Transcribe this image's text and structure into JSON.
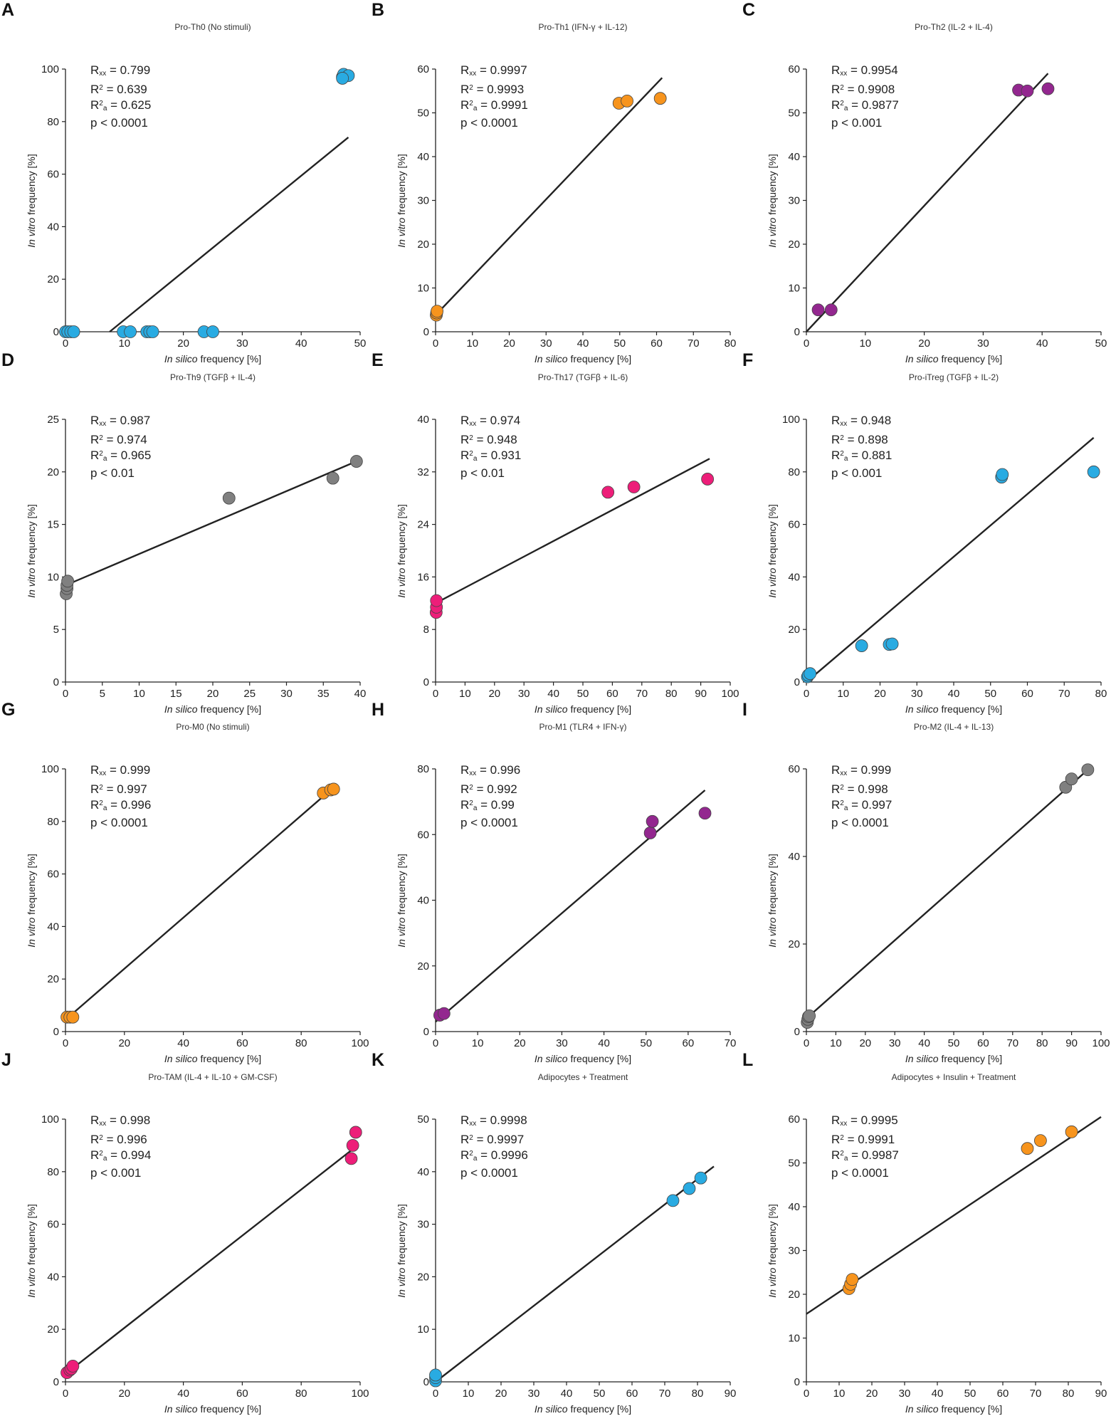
{
  "figure": {
    "x_axis_label": {
      "italic": "In silico",
      "rest": " frequency [%]"
    },
    "y_axis_label": {
      "italic": "In vitro",
      "rest": " frequency [%]"
    },
    "stat_labels": {
      "rxx_main": "R",
      "rxx_sub": "xx",
      "r2_main": "R",
      "r2_sup": "2",
      "r2a_main": "R",
      "r2a_sup": "2",
      "r2a_sub": "a"
    }
  },
  "chart_data": [
    {
      "letter": "A",
      "type": "scatter",
      "title": "Pro-Th0 (No stimuli)",
      "color": "#29abe2",
      "xlim": [
        0,
        50
      ],
      "ylim": [
        0,
        100
      ],
      "xticks": [
        0,
        10,
        20,
        30,
        40,
        50
      ],
      "yticks": [
        0,
        20,
        40,
        60,
        80,
        100
      ],
      "points": [
        [
          0,
          0
        ],
        [
          0.4,
          0
        ],
        [
          0.9,
          0
        ],
        [
          1.4,
          0
        ],
        [
          9.8,
          0
        ],
        [
          11,
          0
        ],
        [
          13.8,
          0
        ],
        [
          14.3,
          0
        ],
        [
          14.8,
          0
        ],
        [
          23.5,
          0
        ],
        [
          25,
          0
        ],
        [
          47,
          97
        ],
        [
          47.2,
          98
        ],
        [
          48,
          97.5
        ],
        [
          47,
          96.5
        ]
      ],
      "fit": [
        [
          7.5,
          0
        ],
        [
          48,
          74
        ]
      ],
      "stats": {
        "rxx": " =  0.799",
        "r2": " =  0.639",
        "r2a": " =  0.625",
        "p": "p < 0.0001"
      }
    },
    {
      "letter": "B",
      "type": "scatter",
      "title": "Pro-Th1 (IFN-γ + IL-12)",
      "color": "#f7941d",
      "xlim": [
        0,
        80
      ],
      "ylim": [
        0,
        60
      ],
      "xticks": [
        0,
        10,
        20,
        30,
        40,
        50,
        60,
        70,
        80
      ],
      "yticks": [
        0,
        10,
        20,
        30,
        40,
        50,
        60
      ],
      "points": [
        [
          0.2,
          3.8
        ],
        [
          0.3,
          4.3
        ],
        [
          0.4,
          4.7
        ],
        [
          49.8,
          52.2
        ],
        [
          52,
          52.7
        ],
        [
          61,
          53.3
        ]
      ],
      "fit": [
        [
          0,
          3.8
        ],
        [
          61.5,
          58
        ]
      ],
      "stats": {
        "rxx": " =  0.9997",
        "r2": " =  0.9993",
        "r2a": " =  0.9991",
        "p": "p < 0.0001"
      }
    },
    {
      "letter": "C",
      "type": "scatter",
      "title": "Pro-Th2 (IL-2 + IL-4)",
      "color": "#93278f",
      "xlim": [
        0,
        50
      ],
      "ylim": [
        0,
        60
      ],
      "xticks": [
        0,
        10,
        20,
        30,
        40,
        50
      ],
      "yticks": [
        0,
        10,
        20,
        30,
        40,
        50,
        60
      ],
      "points": [
        [
          2,
          5
        ],
        [
          4.2,
          5
        ],
        [
          36,
          55.2
        ],
        [
          37.5,
          55
        ],
        [
          41,
          55.5
        ]
      ],
      "fit": [
        [
          0,
          0
        ],
        [
          41,
          59
        ]
      ],
      "stats": {
        "rxx": " =  0.9954",
        "r2": " =  0.9908",
        "r2a": " =  0.9877",
        "p": "p < 0.001"
      }
    },
    {
      "letter": "D",
      "type": "scatter",
      "title": "Pro-Th9 (TGFβ + IL-4)",
      "color": "#808080",
      "xlim": [
        0,
        40
      ],
      "ylim": [
        0,
        25
      ],
      "xticks": [
        0,
        5,
        10,
        15,
        20,
        25,
        30,
        35,
        40
      ],
      "yticks": [
        0,
        5,
        10,
        15,
        20,
        25
      ],
      "points": [
        [
          0.1,
          8.4
        ],
        [
          0.2,
          8.9
        ],
        [
          0.2,
          9.2
        ],
        [
          0.3,
          9.6
        ],
        [
          22.2,
          17.5
        ],
        [
          36.3,
          19.4
        ],
        [
          39.5,
          21
        ]
      ],
      "fit": [
        [
          0,
          9.2
        ],
        [
          39.5,
          21
        ]
      ],
      "stats": {
        "rxx": " =  0.987",
        "r2": " =  0.974",
        "r2a": " =  0.965",
        "p": "p < 0.01"
      }
    },
    {
      "letter": "E",
      "type": "scatter",
      "title": "Pro-Th17 (TGFβ + IL-6)",
      "color": "#ed1e79",
      "xlim": [
        0,
        100
      ],
      "ylim": [
        0,
        40
      ],
      "xticks": [
        0,
        10,
        20,
        30,
        40,
        50,
        60,
        70,
        80,
        90,
        100
      ],
      "yticks": [
        0,
        8,
        16,
        24,
        32,
        40
      ],
      "points": [
        [
          0.2,
          10.6
        ],
        [
          0.3,
          11.4
        ],
        [
          0.3,
          12.4
        ],
        [
          58.5,
          28.9
        ],
        [
          67.3,
          29.7
        ],
        [
          92.3,
          30.9
        ]
      ],
      "fit": [
        [
          0,
          12
        ],
        [
          93,
          34
        ]
      ],
      "stats": {
        "rxx": " =  0.974",
        "r2": " =  0.948",
        "r2a": " =  0.931",
        "p": "p < 0.01"
      }
    },
    {
      "letter": "F",
      "type": "scatter",
      "title": "Pro-iTreg (TGFβ + IL-2)",
      "color": "#29abe2",
      "xlim": [
        0,
        80
      ],
      "ylim": [
        0,
        100
      ],
      "xticks": [
        0,
        10,
        20,
        30,
        40,
        50,
        60,
        70,
        80
      ],
      "yticks": [
        0,
        20,
        40,
        60,
        80,
        100
      ],
      "points": [
        [
          0.3,
          2
        ],
        [
          0.5,
          2.6
        ],
        [
          1,
          3.2
        ],
        [
          15,
          13.8
        ],
        [
          22.5,
          14.3
        ],
        [
          23.3,
          14.5
        ],
        [
          53,
          78
        ],
        [
          53.2,
          79
        ],
        [
          78,
          80
        ]
      ],
      "fit": [
        [
          0,
          0
        ],
        [
          78,
          93
        ]
      ],
      "stats": {
        "rxx": " =  0.948",
        "r2": " =  0.898",
        "r2a": " =  0.881",
        "p": "p < 0.001"
      }
    },
    {
      "letter": "G",
      "type": "scatter",
      "title": "Pro-M0 (No stimuli)",
      "color": "#f7941d",
      "xlim": [
        0,
        100
      ],
      "ylim": [
        0,
        100
      ],
      "xticks": [
        0,
        20,
        40,
        60,
        80,
        100
      ],
      "yticks": [
        0,
        20,
        40,
        60,
        80,
        100
      ],
      "points": [
        [
          0.5,
          5.5
        ],
        [
          1.5,
          5.5
        ],
        [
          2.5,
          5.5
        ],
        [
          87.5,
          90.8
        ],
        [
          90,
          92
        ],
        [
          91,
          92.3
        ]
      ],
      "fit": [
        [
          0,
          4.5
        ],
        [
          89,
          91
        ]
      ],
      "stats": {
        "rxx": " =  0.999",
        "r2": " =  0.997",
        "r2a": " =  0.996",
        "p": "p < 0.0001"
      }
    },
    {
      "letter": "H",
      "type": "scatter",
      "title": "Pro-M1 (TLR4 + IFN-γ)",
      "color": "#93278f",
      "xlim": [
        0,
        70
      ],
      "ylim": [
        0,
        80
      ],
      "xticks": [
        0,
        10,
        20,
        30,
        40,
        50,
        60,
        70
      ],
      "yticks": [
        0,
        20,
        40,
        60,
        80
      ],
      "points": [
        [
          1,
          5
        ],
        [
          2,
          5.5
        ],
        [
          51,
          60.5
        ],
        [
          51.5,
          64
        ],
        [
          64,
          66.5
        ]
      ],
      "fit": [
        [
          0,
          3
        ],
        [
          64,
          73.5
        ]
      ],
      "stats": {
        "rxx": " =  0.996",
        "r2": " =  0.992",
        "r2a": " =  0.99",
        "p": "p < 0.0001"
      }
    },
    {
      "letter": "I",
      "type": "scatter",
      "title": "Pro-M2 (IL-4 + IL-13)",
      "color": "#808080",
      "xlim": [
        0,
        100
      ],
      "ylim": [
        0,
        60
      ],
      "xticks": [
        0,
        10,
        20,
        30,
        40,
        50,
        60,
        70,
        80,
        90,
        100
      ],
      "yticks": [
        0,
        20,
        40,
        60
      ],
      "points": [
        [
          0.3,
          2.1
        ],
        [
          0.5,
          2.8
        ],
        [
          0.7,
          3.4
        ],
        [
          1,
          3.6
        ],
        [
          88,
          55.8
        ],
        [
          90,
          57.7
        ],
        [
          95.5,
          59.8
        ]
      ],
      "fit": [
        [
          0,
          3
        ],
        [
          95,
          59.5
        ]
      ],
      "stats": {
        "rxx": " =  0.999",
        "r2": " =  0.998",
        "r2a": " =  0.997",
        "p": "p < 0.0001"
      }
    },
    {
      "letter": "J",
      "type": "scatter",
      "title": "Pro-TAM (IL-4 + IL-10 + GM-CSF)",
      "color": "#ed1e79",
      "xlim": [
        0,
        100
      ],
      "ylim": [
        0,
        100
      ],
      "xticks": [
        0,
        20,
        40,
        60,
        80,
        100
      ],
      "yticks": [
        0,
        20,
        40,
        60,
        80,
        100
      ],
      "points": [
        [
          0.5,
          3.5
        ],
        [
          1.5,
          4.5
        ],
        [
          2,
          5
        ],
        [
          2.5,
          6
        ],
        [
          97,
          85
        ],
        [
          97.5,
          90
        ],
        [
          98.5,
          95
        ]
      ],
      "fit": [
        [
          0,
          3
        ],
        [
          98,
          89
        ]
      ],
      "stats": {
        "rxx": " =  0.998",
        "r2": " =  0.996",
        "r2a": " =  0.994",
        "p": "p < 0.001"
      }
    },
    {
      "letter": "K",
      "type": "scatter",
      "title": "Adipocytes + Treatment",
      "color": "#29abe2",
      "xlim": [
        0,
        90
      ],
      "ylim": [
        0,
        50
      ],
      "xticks": [
        0,
        10,
        20,
        30,
        40,
        50,
        60,
        70,
        80,
        90
      ],
      "yticks": [
        0,
        10,
        20,
        30,
        40,
        50
      ],
      "points": [
        [
          0,
          0.2
        ],
        [
          0,
          0.8
        ],
        [
          0,
          1.3
        ],
        [
          72.5,
          34.5
        ],
        [
          77.5,
          36.8
        ],
        [
          81,
          38.8
        ]
      ],
      "fit": [
        [
          0,
          0
        ],
        [
          85,
          41
        ]
      ],
      "stats": {
        "rxx": " =  0.9998",
        "r2": " =  0.9997",
        "r2a": " =  0.9996",
        "p": "p < 0.0001"
      }
    },
    {
      "letter": "L",
      "type": "scatter",
      "title": "Adipocytes + Insulin + Treatment",
      "color": "#f7941d",
      "xlim": [
        0,
        90
      ],
      "ylim": [
        0,
        60
      ],
      "xticks": [
        0,
        10,
        20,
        30,
        40,
        50,
        60,
        70,
        80,
        90
      ],
      "yticks": [
        0,
        10,
        20,
        30,
        40,
        50,
        60
      ],
      "points": [
        [
          13,
          21.3
        ],
        [
          13.5,
          22.3
        ],
        [
          14,
          23.4
        ],
        [
          67.5,
          53.3
        ],
        [
          71.5,
          55.1
        ],
        [
          81,
          57.1
        ]
      ],
      "fit": [
        [
          0,
          15.5
        ],
        [
          90,
          60.5
        ]
      ],
      "stats": {
        "rxx": " =  0.9995",
        "r2": " =  0.9991",
        "r2a": " =  0.9987",
        "p": "p < 0.0001"
      }
    }
  ]
}
